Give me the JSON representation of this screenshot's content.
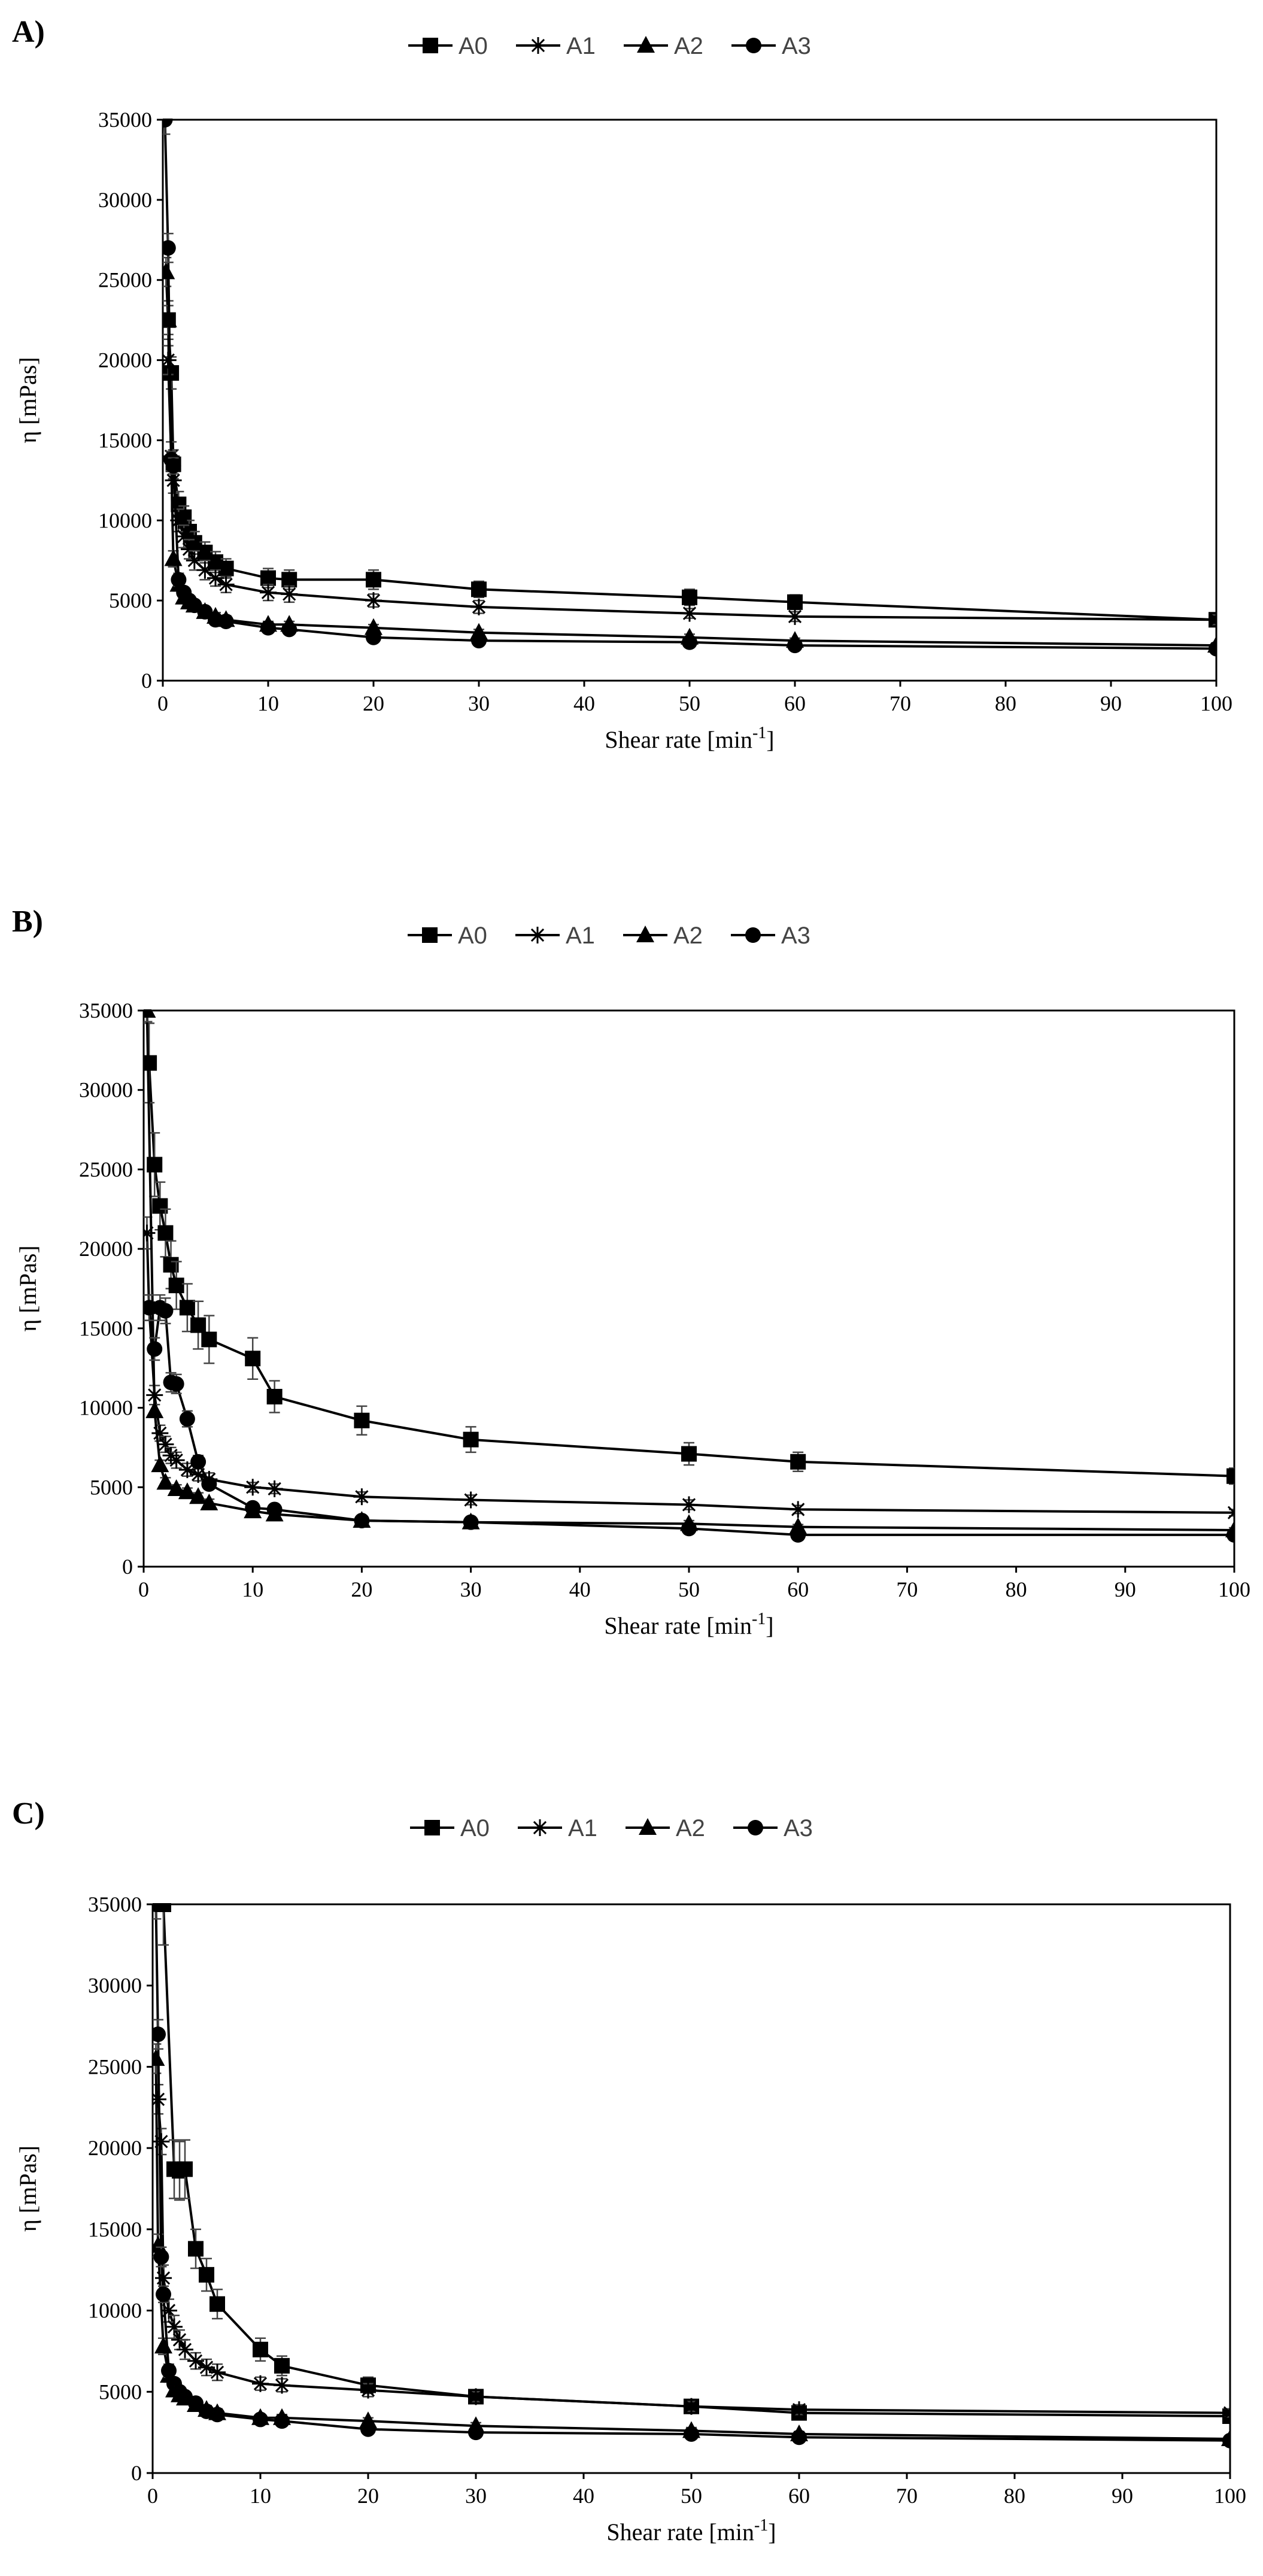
{
  "chart_data": [
    {
      "type": "line",
      "panel_label": "A)",
      "xlabel": "Shear rate [min",
      "xlabel_sup": "-1",
      "xlabel_end": "]",
      "ylabel": "η [mPas]",
      "xlim": [
        0,
        100
      ],
      "ylim": [
        0,
        35000
      ],
      "xticks": [
        0,
        10,
        20,
        30,
        40,
        50,
        60,
        70,
        80,
        90,
        100
      ],
      "yticks": [
        0,
        5000,
        10000,
        15000,
        20000,
        25000,
        30000,
        35000
      ],
      "legend_position": "top-center",
      "series": [
        {
          "name": "A0",
          "marker": "square",
          "x": [
            0.5,
            0.8,
            1,
            1.5,
            2,
            2.5,
            3,
            4,
            5,
            6,
            10,
            12,
            20,
            30,
            50,
            60,
            100
          ],
          "y": [
            22500,
            19200,
            13500,
            11000,
            10200,
            9300,
            8600,
            8000,
            7400,
            7000,
            6400,
            6300,
            6300,
            5700,
            5200,
            4900,
            3800
          ],
          "err": [
            1200,
            1000,
            900,
            800,
            700,
            700,
            700,
            650,
            650,
            600,
            600,
            600,
            600,
            500,
            500,
            450,
            300
          ]
        },
        {
          "name": "A1",
          "marker": "star",
          "x": [
            0.5,
            0.8,
            1,
            1.5,
            2,
            2.5,
            3,
            4,
            5,
            6,
            10,
            12,
            20,
            30,
            50,
            60,
            100
          ],
          "y": [
            20000,
            14000,
            12500,
            10000,
            9000,
            8200,
            7500,
            6900,
            6400,
            6000,
            5500,
            5400,
            5000,
            4600,
            4200,
            4000,
            3800
          ],
          "err": [
            900,
            900,
            800,
            700,
            700,
            600,
            600,
            600,
            500,
            500,
            500,
            500,
            400,
            400,
            300,
            300,
            300
          ]
        },
        {
          "name": "A2",
          "marker": "triangle",
          "x": [
            0.3,
            0.5,
            1,
            1.5,
            2,
            2.5,
            3,
            4,
            5,
            6,
            10,
            12,
            20,
            30,
            50,
            60,
            100
          ],
          "y": [
            25500,
            22500,
            7600,
            6000,
            5200,
            4900,
            4700,
            4300,
            4000,
            3800,
            3500,
            3500,
            3300,
            3000,
            2700,
            2500,
            2200
          ],
          "err": [
            900,
            900,
            500,
            400,
            300,
            300,
            300,
            300,
            250,
            250,
            200,
            200,
            200,
            200,
            200,
            150,
            150
          ]
        },
        {
          "name": "A3",
          "marker": "circle",
          "x": [
            0.2,
            0.5,
            0.8,
            1,
            1.5,
            2,
            2.5,
            3,
            4,
            5,
            6,
            10,
            12,
            20,
            30,
            50,
            60,
            100
          ],
          "y": [
            35000,
            27000,
            13800,
            13400,
            6300,
            5500,
            5000,
            4700,
            4300,
            3800,
            3700,
            3300,
            3200,
            2700,
            2500,
            2400,
            2200,
            2000
          ],
          "err": [
            900,
            900,
            500,
            500,
            400,
            300,
            300,
            300,
            250,
            250,
            250,
            200,
            200,
            150,
            150,
            150,
            150,
            100
          ]
        }
      ]
    },
    {
      "type": "line",
      "panel_label": "B)",
      "xlabel": "Shear rate [min",
      "xlabel_sup": "-1",
      "xlabel_end": "]",
      "ylabel": "η [mPas]",
      "xlim": [
        0,
        100
      ],
      "ylim": [
        0,
        35000
      ],
      "xticks": [
        0,
        10,
        20,
        30,
        40,
        50,
        60,
        70,
        80,
        90,
        100
      ],
      "yticks": [
        0,
        5000,
        10000,
        15000,
        20000,
        25000,
        30000,
        35000
      ],
      "legend_position": "top-center",
      "series": [
        {
          "name": "A0",
          "marker": "square",
          "x": [
            0.5,
            1,
            1.5,
            2,
            2.5,
            3,
            4,
            5,
            6,
            10,
            12,
            20,
            30,
            50,
            60,
            100
          ],
          "y": [
            31700,
            25300,
            22700,
            21000,
            19000,
            17700,
            16300,
            15200,
            14300,
            13100,
            10700,
            9200,
            8000,
            7100,
            6600,
            5700
          ],
          "err": [
            2500,
            2000,
            1500,
            1500,
            1500,
            1500,
            1500,
            1500,
            1500,
            1300,
            1000,
            900,
            800,
            700,
            600,
            500
          ]
        },
        {
          "name": "A1",
          "marker": "star",
          "x": [
            0.3,
            0.5,
            1,
            1.5,
            2,
            2.5,
            3,
            4,
            5,
            6,
            10,
            12,
            20,
            30,
            50,
            60,
            100
          ],
          "y": [
            21000,
            16300,
            10800,
            8400,
            7700,
            7000,
            6700,
            6100,
            5800,
            5500,
            5000,
            4900,
            4400,
            4200,
            3900,
            3600,
            3400
          ],
          "err": [
            1000,
            800,
            600,
            500,
            500,
            500,
            500,
            400,
            400,
            400,
            300,
            300,
            300,
            300,
            300,
            250,
            200
          ]
        },
        {
          "name": "A2",
          "marker": "triangle",
          "x": [
            0.3,
            1,
            1.5,
            2,
            3,
            4,
            5,
            6,
            10,
            12,
            20,
            30,
            50,
            60,
            100
          ],
          "y": [
            35000,
            9800,
            6400,
            5300,
            4900,
            4700,
            4400,
            4000,
            3500,
            3300,
            2900,
            2800,
            2700,
            2500,
            2300
          ],
          "err": [
            700,
            400,
            300,
            300,
            250,
            250,
            250,
            250,
            200,
            200,
            200,
            200,
            200,
            150,
            150
          ]
        },
        {
          "name": "A3",
          "marker": "circle",
          "x": [
            0.5,
            1,
            1.5,
            2,
            2.5,
            3,
            4,
            5,
            6,
            10,
            12,
            20,
            30,
            50,
            60,
            100
          ],
          "y": [
            16300,
            13700,
            16300,
            16100,
            11600,
            11500,
            9300,
            6600,
            5200,
            3700,
            3600,
            2900,
            2800,
            2400,
            2000,
            2000
          ],
          "err": [
            800,
            700,
            800,
            800,
            600,
            600,
            500,
            400,
            300,
            250,
            250,
            200,
            200,
            150,
            150,
            100
          ]
        }
      ]
    },
    {
      "type": "line",
      "panel_label": "C)",
      "xlabel": "Shear rate [min",
      "xlabel_sup": "-1",
      "xlabel_end": "]",
      "ylabel": "η [mPas]",
      "xlim": [
        0,
        100
      ],
      "ylim": [
        0,
        35000
      ],
      "xticks": [
        0,
        10,
        20,
        30,
        40,
        50,
        60,
        70,
        80,
        90,
        100
      ],
      "yticks": [
        0,
        5000,
        10000,
        15000,
        20000,
        25000,
        30000,
        35000
      ],
      "legend_position": "top-center",
      "series": [
        {
          "name": "A0",
          "marker": "square",
          "x": [
            1,
            2,
            2.5,
            3,
            4,
            5,
            6,
            10,
            12,
            20,
            30,
            50,
            60,
            100
          ],
          "y": [
            35000,
            18700,
            18600,
            18700,
            13800,
            12200,
            10400,
            7600,
            6600,
            5400,
            4700,
            4100,
            3700,
            3500
          ],
          "err": [
            2500,
            1800,
            1800,
            1800,
            1200,
            1000,
            900,
            700,
            600,
            500,
            400,
            400,
            300,
            300
          ]
        },
        {
          "name": "A1",
          "marker": "star",
          "x": [
            0.5,
            0.8,
            1,
            1.5,
            2,
            2.5,
            3,
            4,
            5,
            6,
            10,
            12,
            20,
            30,
            50,
            60,
            100
          ],
          "y": [
            23000,
            20400,
            12000,
            10000,
            9000,
            8200,
            7600,
            6900,
            6500,
            6200,
            5500,
            5400,
            5100,
            4700,
            4100,
            3900,
            3700
          ],
          "err": [
            900,
            800,
            800,
            700,
            700,
            600,
            600,
            500,
            500,
            500,
            400,
            400,
            400,
            300,
            300,
            300,
            250
          ]
        },
        {
          "name": "A2",
          "marker": "triangle",
          "x": [
            0.3,
            0.5,
            1,
            1.5,
            2,
            2.5,
            3,
            4,
            5,
            6,
            10,
            12,
            20,
            30,
            50,
            60,
            100
          ],
          "y": [
            25500,
            14000,
            7800,
            6000,
            5100,
            4800,
            4600,
            4200,
            3900,
            3700,
            3400,
            3400,
            3200,
            2900,
            2600,
            2400,
            2100
          ],
          "err": [
            900,
            700,
            500,
            400,
            300,
            300,
            300,
            300,
            250,
            250,
            200,
            200,
            200,
            200,
            200,
            150,
            150
          ]
        },
        {
          "name": "A3",
          "marker": "circle",
          "x": [
            0.3,
            0.5,
            0.8,
            1,
            1.5,
            2,
            2.5,
            3,
            4,
            5,
            6,
            10,
            12,
            20,
            30,
            50,
            60,
            100
          ],
          "y": [
            35000,
            27000,
            13300,
            11000,
            6300,
            5500,
            5000,
            4700,
            4300,
            3800,
            3600,
            3300,
            3200,
            2700,
            2500,
            2400,
            2200,
            2000
          ],
          "err": [
            900,
            900,
            600,
            500,
            400,
            300,
            300,
            300,
            250,
            250,
            250,
            200,
            200,
            150,
            150,
            150,
            150,
            100
          ]
        }
      ]
    }
  ]
}
